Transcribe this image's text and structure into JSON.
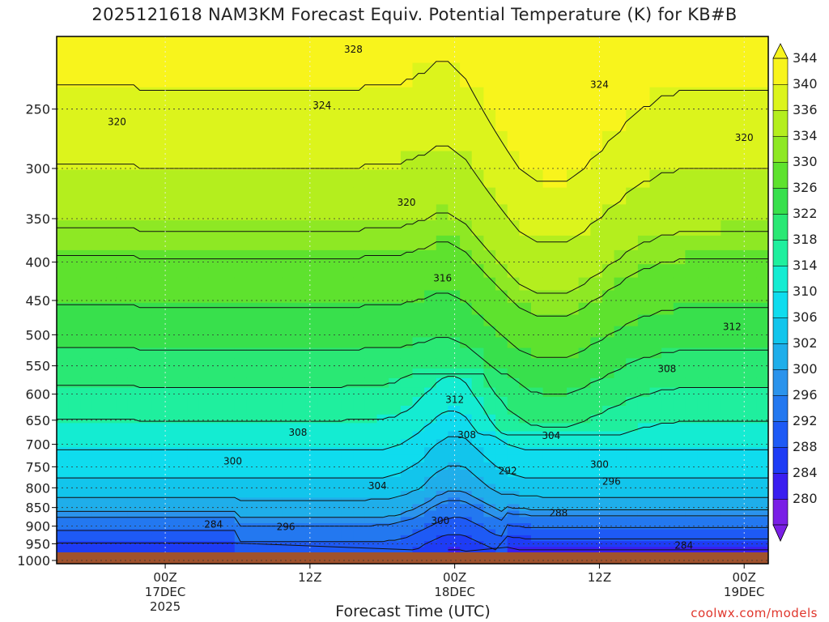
{
  "chart_data": {
    "type": "heatmap",
    "title": "2025121618 NAM3KM Forecast Equiv. Potential Temperature (K) for KB#B",
    "xlabel": "Forecast Time (UTC)",
    "ylabel": "",
    "y_scale": "log-pressure",
    "y_inverted": true,
    "ylim": [
      1010,
      200
    ],
    "y_ticks": [
      250,
      300,
      350,
      400,
      450,
      500,
      550,
      600,
      650,
      700,
      750,
      800,
      850,
      900,
      950,
      1000
    ],
    "x_range_hours": [
      -4.5,
      25
    ],
    "x_ticks": [
      {
        "hour": 0,
        "lines": [
          "00Z",
          "17DEC",
          "2025"
        ]
      },
      {
        "hour": 6,
        "lines": [
          "12Z"
        ]
      },
      {
        "hour": 12,
        "lines": [
          "00Z",
          "18DEC"
        ]
      },
      {
        "hour": 18,
        "lines": [
          "12Z"
        ]
      },
      {
        "hour": 24,
        "lines": [
          "00Z",
          "19DEC"
        ]
      }
    ],
    "grid": true,
    "colorbar": {
      "position": "right",
      "levels": [
        280,
        284,
        288,
        292,
        296,
        300,
        302,
        306,
        310,
        314,
        318,
        322,
        326,
        330,
        334,
        336,
        340,
        344
      ],
      "colors": [
        "#7a1fe6",
        "#3a1ef0",
        "#1e3cf5",
        "#1e5af5",
        "#2378f0",
        "#2b93ec",
        "#1faeea",
        "#12c5ec",
        "#0fdcee",
        "#14ecd2",
        "#1fef9e",
        "#2ae874",
        "#38e04c",
        "#5ee22e",
        "#8ee824",
        "#b4ee1e",
        "#dcf41c",
        "#f8f41c"
      ],
      "under_color": "#7a1fe6",
      "over_color": "#f8f41c"
    },
    "contour_labels": [
      {
        "value": "328",
        "hour": 7.8,
        "p": 208
      },
      {
        "value": "324",
        "hour": 18.0,
        "p": 232
      },
      {
        "value": "324",
        "hour": 6.5,
        "p": 247
      },
      {
        "value": "320",
        "hour": -2.0,
        "p": 260
      },
      {
        "value": "320",
        "hour": 24.0,
        "p": 273
      },
      {
        "value": "320",
        "hour": 10.0,
        "p": 333
      },
      {
        "value": "316",
        "hour": 11.5,
        "p": 420
      },
      {
        "value": "312",
        "hour": 23.5,
        "p": 488
      },
      {
        "value": "308",
        "hour": 20.8,
        "p": 555
      },
      {
        "value": "312",
        "hour": 12.0,
        "p": 610
      },
      {
        "value": "308",
        "hour": 5.5,
        "p": 675
      },
      {
        "value": "308",
        "hour": 12.5,
        "p": 680
      },
      {
        "value": "304",
        "hour": 16.0,
        "p": 682
      },
      {
        "value": "300",
        "hour": 2.8,
        "p": 737
      },
      {
        "value": "300",
        "hour": 18.0,
        "p": 745
      },
      {
        "value": "292",
        "hour": 14.2,
        "p": 760
      },
      {
        "value": "296",
        "hour": 18.5,
        "p": 785
      },
      {
        "value": "304",
        "hour": 8.8,
        "p": 795
      },
      {
        "value": "288",
        "hour": 16.3,
        "p": 865
      },
      {
        "value": "284",
        "hour": 2.0,
        "p": 895
      },
      {
        "value": "296",
        "hour": 5.0,
        "p": 902
      },
      {
        "value": "300",
        "hour": 11.4,
        "p": 885
      },
      {
        "value": "284",
        "hour": 21.5,
        "p": 955
      }
    ]
  },
  "credit": "coolwx.com/models"
}
